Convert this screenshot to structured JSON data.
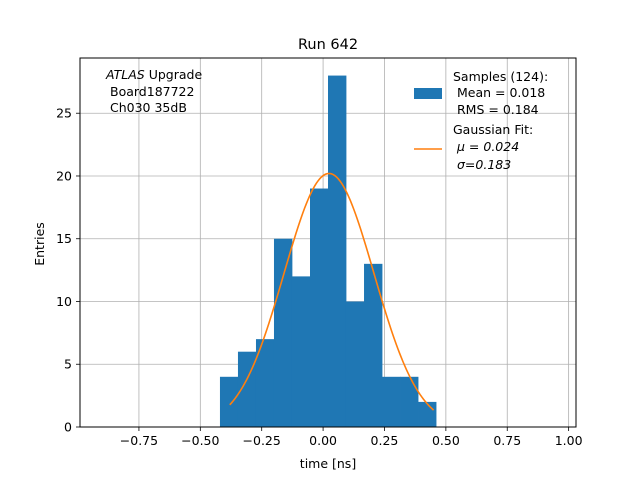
{
  "chart_data": {
    "type": "bar",
    "title": "Run 642",
    "xlabel": "time [ns]",
    "ylabel": "Entries",
    "xlim": [
      -0.99,
      1.03
    ],
    "ylim": [
      0,
      29.4
    ],
    "grid": true,
    "x_ticks": [
      -0.75,
      -0.5,
      -0.25,
      0.0,
      0.25,
      0.5,
      0.75,
      1.0
    ],
    "x_tick_labels": [
      "−0.75",
      "−0.50",
      "−0.25",
      "0.00",
      "0.25",
      "0.50",
      "0.75",
      "1.00"
    ],
    "y_ticks": [
      0,
      5,
      10,
      15,
      20,
      25
    ],
    "y_tick_labels": [
      "0",
      "5",
      "10",
      "15",
      "20",
      "25"
    ],
    "histogram": {
      "name": "Samples (124):",
      "color": "#1f77b4",
      "bin_edges": [
        -0.42,
        -0.3467,
        -0.2733,
        -0.2,
        -0.1267,
        -0.0533,
        0.02,
        0.0933,
        0.1667,
        0.24,
        0.3133,
        0.3867,
        0.46
      ],
      "counts": [
        4,
        6,
        7,
        15,
        12,
        19,
        28,
        10,
        13,
        4,
        4,
        2
      ]
    },
    "fit": {
      "name": "Gaussian Fit:",
      "color": "#ff7f0e",
      "mu": 0.024,
      "sigma": 0.183,
      "amplitude": 20.2,
      "x_range": [
        -0.38,
        0.45
      ]
    },
    "annotation": {
      "line1_italic": "ATLAS",
      "line1_rest": " Upgrade",
      "line2": "Board187722",
      "line3": "Ch030 35dB"
    },
    "legend": {
      "position": "top-right",
      "samples_title": "Samples (124):",
      "samples_mean": "Mean = 0.018",
      "samples_rms": "RMS = 0.184",
      "fit_title": "Gaussian Fit:",
      "fit_mu": "μ = 0.024",
      "fit_sigma": "σ=0.183"
    }
  }
}
